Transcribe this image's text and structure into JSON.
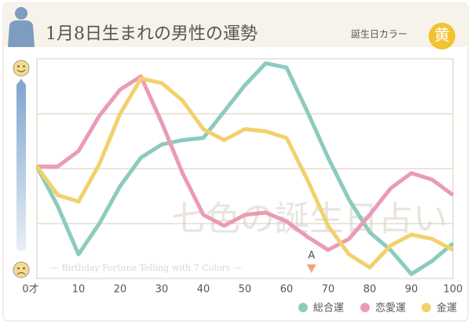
{
  "chart_data": {
    "type": "line",
    "title": "1月8日生まれの男性の運勢",
    "color_label": "誕生日カラー",
    "color_name": "黄",
    "watermark": "七色の誕生日占い",
    "watermark_subtitle": "— Birthday Fortune Telling with 7 Colors —",
    "x": [
      0,
      5,
      10,
      15,
      20,
      25,
      30,
      35,
      40,
      45,
      50,
      55,
      60,
      65,
      70,
      75,
      80,
      85,
      90,
      95,
      100
    ],
    "xlim": [
      0,
      100
    ],
    "xticks": [
      {
        "value": 0,
        "label": "0才"
      },
      10,
      20,
      30,
      40,
      50,
      60,
      70,
      80,
      90,
      100
    ],
    "ylim": [
      0,
      100
    ],
    "grid": true,
    "annotation": {
      "label": "A",
      "x": 66
    },
    "series": [
      {
        "name": "総合運",
        "color": "#8ccbbf",
        "values": [
          51,
          33,
          11,
          25,
          42,
          55,
          61,
          63,
          64,
          76,
          88,
          98,
          96,
          76,
          55,
          36,
          21,
          13,
          2,
          8,
          16
        ]
      },
      {
        "name": "恋愛運",
        "color": "#eb9ab8",
        "values": [
          51,
          51,
          58,
          74,
          86,
          92,
          71,
          48,
          29,
          24,
          29,
          30,
          26,
          19,
          13,
          18,
          29,
          41,
          48,
          45,
          38
        ]
      },
      {
        "name": "金運",
        "color": "#f2d16d",
        "values": [
          51,
          38,
          35,
          52,
          75,
          91,
          89,
          81,
          68,
          63,
          68,
          67,
          64,
          45,
          24,
          11,
          5,
          15,
          20,
          18,
          13
        ]
      }
    ]
  }
}
